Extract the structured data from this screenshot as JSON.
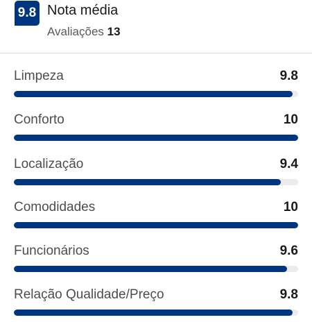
{
  "summary": {
    "score": "9.8",
    "title": "Nota média",
    "reviews_label": "Avaliações",
    "reviews_count": "13"
  },
  "colors": {
    "brand": "#003580",
    "track": "#ebebeb"
  },
  "criteria": [
    {
      "label": "Limpeza",
      "value": "9.8",
      "fraction": 0.98
    },
    {
      "label": "Conforto",
      "value": "10",
      "fraction": 1.0
    },
    {
      "label": "Localização",
      "value": "9.4",
      "fraction": 0.94
    },
    {
      "label": "Comodidades",
      "value": "10",
      "fraction": 1.0
    },
    {
      "label": "Funcionários",
      "value": "9.6",
      "fraction": 0.96
    },
    {
      "label": "Relação Qualidade/Preço",
      "value": "9.8",
      "fraction": 0.98
    }
  ]
}
